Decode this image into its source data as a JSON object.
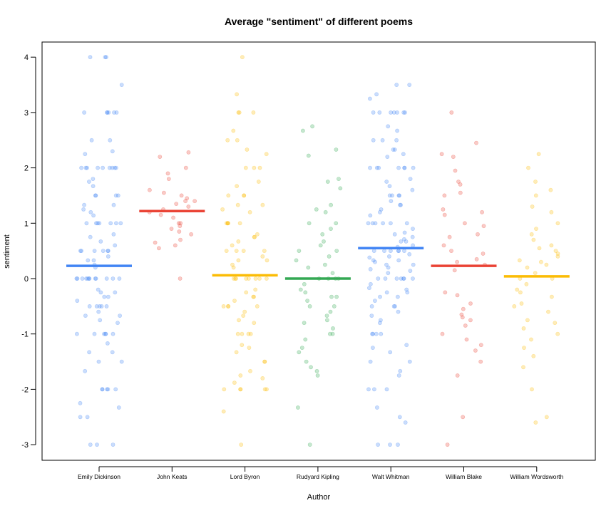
{
  "chart_data": {
    "type": "scatter",
    "title": "Average \"sentiment\" of different poems",
    "xlabel": "Author",
    "ylabel": "sentiment",
    "ylim": [
      -3.3,
      4.3
    ],
    "y_ticks": [
      -3,
      -2,
      -1,
      0,
      1,
      2,
      3,
      4
    ],
    "grid": false,
    "categories": [
      "Emily Dickinson",
      "John Keats",
      "Lord Byron",
      "Rudyard Kipling",
      "Walt Whitman",
      "William Blake",
      "William Wordsworth"
    ],
    "colors": [
      "#4285f4",
      "#ea4335",
      "#fbbc05",
      "#34a853",
      "#4285f4",
      "#ea4335",
      "#fbbc05"
    ],
    "means": [
      0.23,
      1.22,
      0.06,
      0.0,
      0.55,
      0.23,
      0.04
    ],
    "series": [
      {
        "values": [
          4,
          4,
          4,
          3.5,
          3,
          3,
          3,
          3,
          3,
          3,
          2.5,
          2.5,
          2.3,
          2.25,
          2,
          2,
          2,
          2,
          2,
          2,
          2,
          2,
          2,
          1.8,
          1.75,
          1.67,
          1.5,
          1.5,
          1.5,
          1.5,
          1.33,
          1.33,
          1.25,
          1.2,
          1.14,
          1,
          1,
          1,
          1,
          1,
          1,
          1,
          0.8,
          0.75,
          0.67,
          0.6,
          0.5,
          0.5,
          0.5,
          0.5,
          0.5,
          0.5,
          0.4,
          0.33,
          0.33,
          0.25,
          0.2,
          0,
          0,
          0,
          0,
          0,
          0,
          0,
          0,
          0,
          0,
          0,
          0,
          -0.2,
          -0.25,
          -0.25,
          -0.33,
          -0.33,
          -0.4,
          -0.5,
          -0.5,
          -0.5,
          -0.5,
          -0.5,
          -0.6,
          -0.67,
          -0.67,
          -0.75,
          -0.8,
          -1,
          -1,
          -1,
          -1,
          -1,
          -1,
          -1.17,
          -1.33,
          -1.33,
          -1.5,
          -1.5,
          -1.67,
          -2,
          -2,
          -2,
          -2,
          -2,
          -2.25,
          -2.33,
          -2.5,
          -2.5,
          -3,
          -3,
          -3
        ]
      },
      {
        "values": [
          2.28,
          2.2,
          2.0,
          1.9,
          1.8,
          1.6,
          1.55,
          1.5,
          1.45,
          1.4,
          1.4,
          1.35,
          1.3,
          1.25,
          1.2,
          1.15,
          1.1,
          1.0,
          1.0,
          0.95,
          0.9,
          0.85,
          0.8,
          0.7,
          0.65,
          0.6,
          0.55,
          0.0
        ]
      },
      {
        "values": [
          4,
          3.33,
          3,
          3,
          3,
          2.67,
          2.5,
          2.5,
          2.33,
          2.25,
          2,
          2,
          2,
          1.75,
          1.67,
          1.5,
          1.5,
          1.5,
          1.33,
          1.33,
          1.25,
          1.2,
          1.0,
          1.0,
          1.0,
          1.0,
          1.0,
          0.8,
          0.75,
          0.75,
          0.67,
          0.6,
          0.5,
          0.5,
          0.5,
          0.5,
          0.4,
          0.33,
          0.33,
          0.25,
          0.2,
          0,
          0,
          0,
          0,
          0,
          0,
          0,
          0,
          -0.2,
          -0.25,
          -0.33,
          -0.33,
          -0.4,
          -0.5,
          -0.5,
          -0.5,
          -0.5,
          -0.6,
          -0.67,
          -0.75,
          -0.8,
          -1,
          -1,
          -1,
          -1,
          -1.2,
          -1.25,
          -1.33,
          -1.5,
          -1.5,
          -1.67,
          -1.75,
          -1.8,
          -1.88,
          -2,
          -2,
          -2,
          -2,
          -2,
          -2.4,
          -3
        ]
      },
      {
        "values": [
          2.75,
          2.67,
          2.33,
          2.22,
          1.8,
          1.75,
          1.63,
          1.33,
          1.25,
          1.2,
          1.0,
          1.0,
          0.9,
          0.8,
          0.67,
          0.6,
          0.5,
          0.5,
          0.4,
          0.33,
          0.25,
          0.2,
          0.1,
          0,
          0,
          0,
          0,
          -0.1,
          -0.2,
          -0.25,
          -0.33,
          -0.33,
          -0.4,
          -0.5,
          -0.5,
          -0.6,
          -0.67,
          -0.75,
          -0.8,
          -0.9,
          -1.0,
          -1.0,
          -1.1,
          -1.25,
          -1.33,
          -1.5,
          -1.6,
          -1.67,
          -1.75,
          -2.33,
          -3
        ]
      },
      {
        "values": [
          3.5,
          3.5,
          3.33,
          3.25,
          3,
          3,
          3,
          3,
          3,
          3,
          3,
          2.75,
          2.67,
          2.5,
          2.5,
          2.5,
          2.33,
          2.33,
          2.25,
          2.2,
          2,
          2,
          2,
          2,
          2,
          2,
          2,
          1.8,
          1.75,
          1.67,
          1.6,
          1.5,
          1.5,
          1.5,
          1.5,
          1.4,
          1.33,
          1.33,
          1.25,
          1.2,
          1.14,
          1.0,
          1.0,
          1.0,
          1.0,
          1.0,
          1.0,
          0.9,
          0.83,
          0.8,
          0.75,
          0.71,
          0.67,
          0.67,
          0.6,
          0.57,
          0.5,
          0.5,
          0.5,
          0.5,
          0.5,
          0.5,
          0.44,
          0.4,
          0.38,
          0.33,
          0.33,
          0.3,
          0.25,
          0.25,
          0.2,
          0.17,
          0.14,
          0.1,
          0,
          0,
          0,
          0,
          0,
          0,
          0,
          -0.1,
          -0.17,
          -0.2,
          -0.25,
          -0.25,
          -0.33,
          -0.33,
          -0.4,
          -0.5,
          -0.5,
          -0.5,
          -0.6,
          -0.67,
          -0.75,
          -0.8,
          -1,
          -1,
          -1,
          -1,
          -1.2,
          -1.25,
          -1.33,
          -1.5,
          -1.5,
          -1.67,
          -1.75,
          -2,
          -2,
          -2,
          -2.33,
          -2.5,
          -2.6,
          -3,
          -3,
          -3
        ]
      },
      {
        "values": [
          3.0,
          2.45,
          2.25,
          2.2,
          1.95,
          1.75,
          1.7,
          1.55,
          1.5,
          1.25,
          1.2,
          1.15,
          1.0,
          0.95,
          0.8,
          0.75,
          0.6,
          0.5,
          0.45,
          0.35,
          0.3,
          0.25,
          0.15,
          -0.25,
          -0.3,
          -0.45,
          -0.55,
          -0.65,
          -0.7,
          -0.75,
          -0.85,
          -1.0,
          -1.1,
          -1.2,
          -1.3,
          -1.5,
          -1.75,
          -2.5,
          -3.0
        ]
      },
      {
        "values": [
          2.25,
          2.0,
          1.75,
          1.6,
          1.5,
          1.3,
          1.2,
          1.0,
          0.9,
          0.8,
          0.7,
          0.6,
          0.55,
          0.5,
          0.45,
          0.4,
          0.33,
          0.3,
          0.25,
          0.2,
          0.1,
          0,
          0,
          -0.1,
          -0.2,
          -0.25,
          -0.33,
          -0.45,
          -0.5,
          -0.6,
          -0.75,
          -0.8,
          -0.9,
          -1.0,
          -1.1,
          -1.25,
          -1.4,
          -1.6,
          -2.0,
          -2.5,
          -2.6
        ]
      }
    ]
  }
}
